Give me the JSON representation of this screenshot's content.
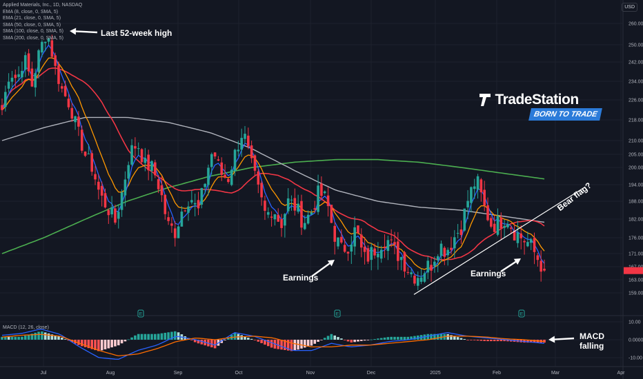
{
  "legend": {
    "title": "Applied Materials, Inc., 1D, NASDAQ",
    "items": [
      {
        "label": "EMA (8, close, 0, SMA, 5)",
        "color": "#2962ff"
      },
      {
        "label": "EMA (21, close, 0, SMA, 5)",
        "color": "#ff9800"
      },
      {
        "label": "SMA (50, close, 0, SMA, 5)",
        "color": "#f23645"
      },
      {
        "label": "SMA (100, close, 0, SMA, 5)",
        "color": "#b2b5be"
      },
      {
        "label": "SMA (200, close, 0, SMA, 5)",
        "color": "#4caf50"
      }
    ]
  },
  "currency": "USD",
  "brand": {
    "name": "TradeStation",
    "tagline": "BORN TO TRADE",
    "color": "#2b7bd9"
  },
  "annotations": {
    "high": "Last 52-week high",
    "earnings_1": "Earnings",
    "earnings_2": "Earnings",
    "bear_flag": "Bear flag?",
    "macd_falling_1": "MACD",
    "macd_falling_2": "falling"
  },
  "macd": {
    "label": "MACD (12, 26, close)",
    "y_ticks": [
      10.0,
      0.0,
      -10.0
    ],
    "y_labels": [
      "10.00",
      "0.0000",
      "-10.00"
    ],
    "current_label": "0.0000"
  },
  "chart_data": {
    "type": "candlestick",
    "up_color": "#26a69a",
    "down_color": "#f23645",
    "y_range": [
      155,
      265
    ],
    "y_ticks": [
      159,
      163,
      167,
      171,
      176,
      182,
      188,
      194,
      200,
      205,
      210,
      218,
      226,
      234,
      242,
      250,
      260
    ],
    "y_tick_labels": [
      "159.00",
      "163.00",
      "167.00",
      "171.00",
      "176.00",
      "182.00",
      "188.00",
      "194.00",
      "200.00",
      "205.00",
      "210.00",
      "218.00",
      "226.00",
      "234.00",
      "242.00",
      "250.00",
      "260.00"
    ],
    "x_labels": [
      "Jul",
      "Aug",
      "Sep",
      "Oct",
      "Nov",
      "Dec",
      "2025",
      "Feb",
      "Mar",
      "Apr"
    ],
    "last_price": 165.8,
    "ohlc_waypoints": [
      222,
      238,
      235,
      244,
      232,
      248,
      256,
      240,
      230,
      224,
      214,
      205,
      200,
      190,
      186,
      181,
      192,
      206,
      209,
      201,
      200,
      192,
      180,
      178,
      186,
      190,
      184,
      196,
      207,
      198,
      196,
      206,
      214,
      202,
      192,
      183,
      186,
      180,
      188,
      186,
      181,
      184,
      191,
      189,
      178,
      172,
      174,
      179,
      169,
      171,
      174,
      176,
      172,
      170,
      166,
      164,
      166,
      168,
      174,
      172,
      176,
      180,
      190,
      196,
      186,
      180,
      181,
      183,
      178,
      176,
      174,
      170,
      166
    ],
    "sma200": [
      171,
      176,
      182,
      188,
      193,
      197,
      200,
      202,
      203,
      203,
      202,
      200,
      198,
      196
    ],
    "sma100": [
      210,
      215,
      219,
      219,
      217,
      213,
      207,
      199,
      192,
      188,
      186,
      185,
      183,
      181
    ],
    "macd_line": [
      2.5,
      3.5,
      6,
      3,
      -4,
      -10,
      -11,
      -6,
      -3,
      2,
      0,
      -3,
      4,
      2,
      -2,
      -6,
      -6,
      -2,
      -4,
      -3,
      -1,
      0,
      2,
      4,
      2,
      1,
      0,
      -1,
      -2
    ],
    "signal_line": [
      1.5,
      2.5,
      3,
      2,
      -2,
      -6,
      -9,
      -8,
      -5,
      -1,
      1,
      0,
      1.5,
      2,
      1,
      -2,
      -4,
      -4,
      -3,
      -3,
      -2,
      -1,
      0,
      2,
      2,
      1.5,
      0.5,
      0,
      -1
    ],
    "earnings_markers": [
      "Aug",
      "Nov",
      "Feb"
    ]
  }
}
